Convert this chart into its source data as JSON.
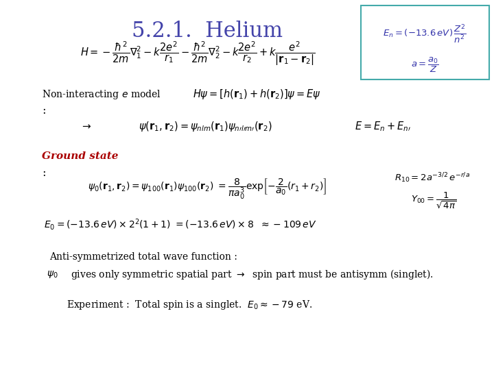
{
  "title": "5.2.1.  Helium",
  "title_color": "#4444aa",
  "title_fontsize": 22,
  "bg_color": "#ffffff",
  "box_color": "#44aaaa",
  "text_color": "#000000",
  "red_color": "#aa0000",
  "blue_color": "#3333aa"
}
